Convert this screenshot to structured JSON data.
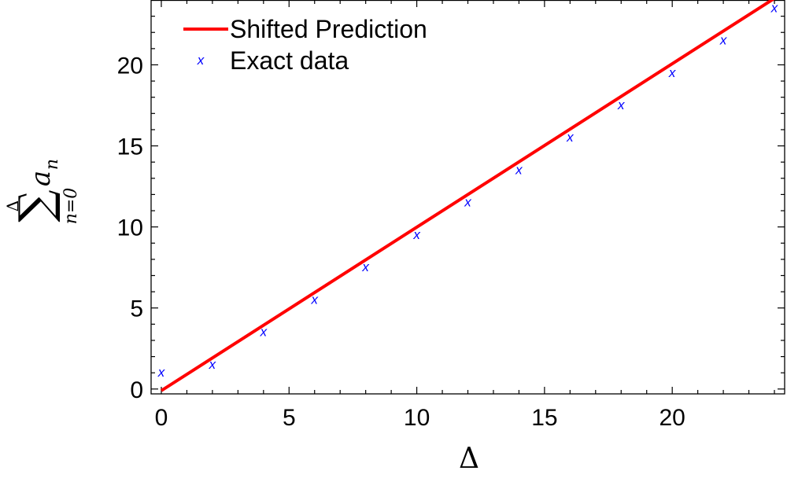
{
  "chart_data": {
    "type": "line",
    "xlabel": "Δ",
    "ylabel": {
      "upper_limit": "Δ",
      "symbol": "∑",
      "term": "a",
      "term_subscript": "n",
      "lower_limit": "n=0"
    },
    "xlim": [
      -0.4,
      24.4
    ],
    "ylim": [
      -0.3,
      24
    ],
    "xticks": [
      0,
      5,
      10,
      15,
      20
    ],
    "yticks": [
      0,
      5,
      10,
      15,
      20
    ],
    "legend_position": "top-left",
    "series": [
      {
        "name": "Shifted Prediction",
        "kind": "line",
        "color": "#ff0000",
        "x": [
          0,
          24
        ],
        "y": [
          -0.1,
          24.1
        ]
      },
      {
        "name": "Exact data",
        "kind": "scatter",
        "marker": "x",
        "color": "#0000ff",
        "x": [
          0,
          2,
          4,
          6,
          8,
          10,
          12,
          14,
          16,
          18,
          20,
          22,
          24
        ],
        "y": [
          1,
          1.5,
          3.5,
          5.5,
          7.5,
          9.5,
          11.5,
          13.5,
          15.5,
          17.5,
          19.5,
          21.5,
          23.5
        ]
      }
    ]
  }
}
